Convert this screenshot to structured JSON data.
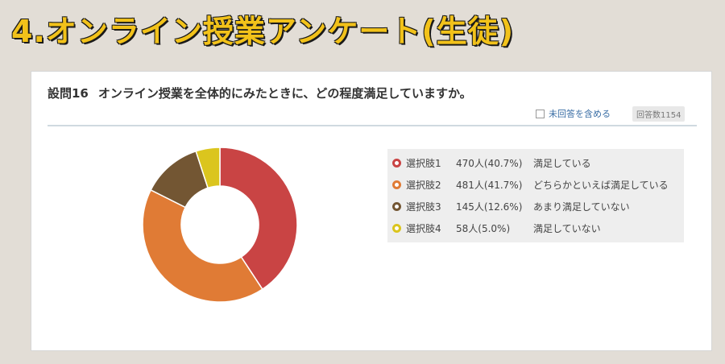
{
  "slide_title": "4.オンライン授業アンケート(生徒)",
  "question": {
    "number": "設問16",
    "text": "オンライン授業を全体的にみたときに、どの程度満足していますか。"
  },
  "include_unanswered_label": "未回答を含める",
  "response_count_label": "回答数1154",
  "chart_data": {
    "type": "pie",
    "donut": true,
    "slices": [
      {
        "label": "選択肢1",
        "count": 470,
        "percent": 40.7,
        "value_text": "470人(40.7%)",
        "description": "満足している",
        "color": "#c94444"
      },
      {
        "label": "選択肢2",
        "count": 481,
        "percent": 41.7,
        "value_text": "481人(41.7%)",
        "description": "どちらかといえば満足している",
        "color": "#e07b35"
      },
      {
        "label": "選択肢3",
        "count": 145,
        "percent": 12.6,
        "value_text": "145人(12.6%)",
        "description": "あまり満足していない",
        "color": "#735633"
      },
      {
        "label": "選択肢4",
        "count": 58,
        "percent": 5.0,
        "value_text": "58人(5.0%)",
        "description": "満足していない",
        "color": "#dbc51e"
      }
    ],
    "legend_position": "right"
  }
}
